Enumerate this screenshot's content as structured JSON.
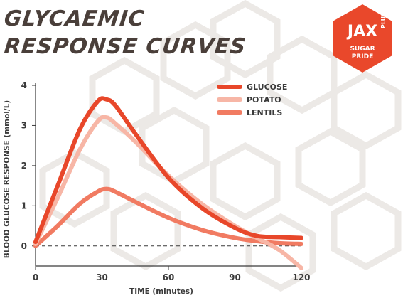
{
  "header": {
    "title_line1": "GLYCAEMIC",
    "title_line2": "RESPONSE CURVES"
  },
  "logo": {
    "main": "JAX",
    "side": "PLUS",
    "sub_line1": "SUGAR",
    "sub_line2": "PRIDE",
    "color": "#e9482b"
  },
  "chart_data": {
    "type": "line",
    "title": "GLYCAEMIC RESPONSE CURVES",
    "xlabel": "TIME (minutes)",
    "ylabel": "BLOOD GLUCOSE RESPONSE (mmol/L)",
    "xlim": [
      0,
      120
    ],
    "ylim": [
      -0.5,
      4
    ],
    "xticks": [
      0,
      30,
      60,
      90,
      120
    ],
    "yticks": [
      0,
      1,
      2,
      3,
      4
    ],
    "reference_line": {
      "y": 0,
      "style": "dashed"
    },
    "grid": false,
    "legend_position": "top-right",
    "series": [
      {
        "name": "GLUCOSE",
        "color": "#e8472a",
        "x": [
          0,
          10,
          20,
          28,
          32,
          36,
          45,
          60,
          75,
          90,
          100,
          110,
          120
        ],
        "y": [
          0.1,
          1.5,
          2.9,
          3.6,
          3.65,
          3.5,
          2.8,
          1.7,
          0.95,
          0.45,
          0.25,
          0.22,
          0.2
        ]
      },
      {
        "name": "POTATO",
        "color": "#f7b6a6",
        "x": [
          0,
          10,
          20,
          28,
          32,
          36,
          45,
          60,
          75,
          90,
          100,
          110,
          120
        ],
        "y": [
          0.05,
          1.2,
          2.4,
          3.1,
          3.2,
          3.05,
          2.6,
          1.75,
          1.05,
          0.5,
          0.2,
          -0.1,
          -0.55
        ]
      },
      {
        "name": "LENTILS",
        "color": "#f17b62",
        "x": [
          0,
          10,
          20,
          28,
          32,
          36,
          45,
          60,
          75,
          90,
          100,
          110,
          120
        ],
        "y": [
          0.0,
          0.5,
          1.05,
          1.35,
          1.42,
          1.35,
          1.1,
          0.7,
          0.4,
          0.2,
          0.12,
          0.07,
          0.05
        ]
      }
    ]
  }
}
